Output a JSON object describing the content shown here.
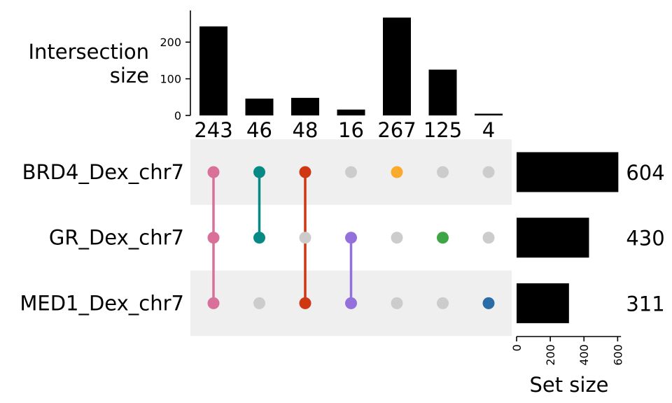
{
  "chart_data": {
    "type": "upset",
    "intersection_axis": {
      "label_lines": [
        "Intersection",
        "size"
      ],
      "ticks": [
        0,
        100,
        200
      ],
      "ylim": [
        0,
        280
      ]
    },
    "set_size_axis": {
      "label": "Set size",
      "ticks": [
        0,
        200,
        400,
        600
      ],
      "xlim": [
        0,
        620
      ]
    },
    "sets": [
      {
        "name": "BRD4_Dex_chr7",
        "size": 604
      },
      {
        "name": "GR_Dex_chr7",
        "size": 430
      },
      {
        "name": "MED1_Dex_chr7",
        "size": 311
      }
    ],
    "intersections": [
      {
        "members": [
          "BRD4_Dex_chr7",
          "GR_Dex_chr7",
          "MED1_Dex_chr7"
        ],
        "size": 243,
        "color": "#d8709a"
      },
      {
        "members": [
          "BRD4_Dex_chr7",
          "GR_Dex_chr7"
        ],
        "size": 46,
        "color": "#078a86"
      },
      {
        "members": [
          "BRD4_Dex_chr7",
          "MED1_Dex_chr7"
        ],
        "size": 48,
        "color": "#cf3712"
      },
      {
        "members": [
          "GR_Dex_chr7",
          "MED1_Dex_chr7"
        ],
        "size": 16,
        "color": "#9370db"
      },
      {
        "members": [
          "BRD4_Dex_chr7"
        ],
        "size": 267,
        "color": "#fbab2c"
      },
      {
        "members": [
          "GR_Dex_chr7"
        ],
        "size": 125,
        "color": "#3ea644"
      },
      {
        "members": [
          "MED1_Dex_chr7"
        ],
        "size": 4,
        "color": "#2a6ca8"
      }
    ],
    "colors": {
      "bar": "#000000",
      "inactive_dot": "#cccccc",
      "stripe": "#efefef"
    }
  }
}
